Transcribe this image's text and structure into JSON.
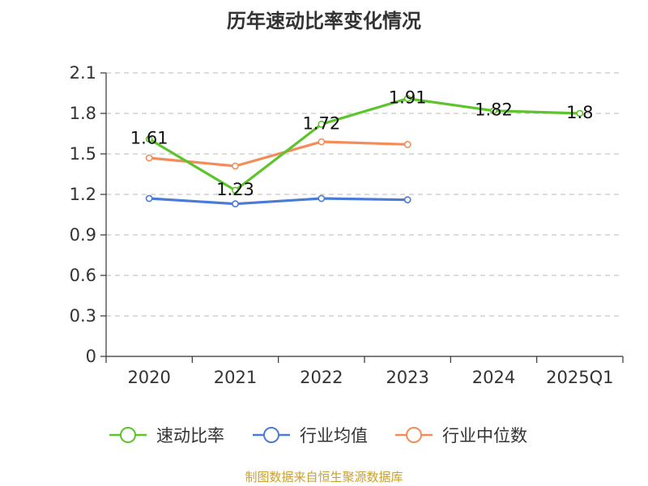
{
  "chart_data": {
    "type": "line",
    "title": "历年速动比率变化情况",
    "categories": [
      "2020",
      "2021",
      "2022",
      "2023",
      "2024",
      "2025Q1"
    ],
    "ylim": [
      0,
      2.1
    ],
    "yticks": [
      "0",
      "0.3",
      "0.6",
      "0.9",
      "1.2",
      "1.5",
      "1.8",
      "2.1"
    ],
    "grid": true,
    "legend_position": "bottom",
    "series": [
      {
        "name": "速动比率",
        "color": "#5ec42d",
        "values": [
          1.61,
          1.23,
          1.72,
          1.91,
          1.82,
          1.8
        ],
        "labels": [
          "1.61",
          "1.23",
          "1.72",
          "1.91",
          "1.82",
          "1.8"
        ]
      },
      {
        "name": "行业均值",
        "color": "#4a7bd6",
        "values": [
          1.17,
          1.13,
          1.17,
          1.16,
          null,
          null
        ]
      },
      {
        "name": "行业中位数",
        "color": "#f48c5a",
        "values": [
          1.47,
          1.41,
          1.59,
          1.57,
          null,
          null
        ]
      }
    ]
  },
  "source": {
    "text": "制图数据来自恒生聚源数据库",
    "color": "#c8a032"
  }
}
